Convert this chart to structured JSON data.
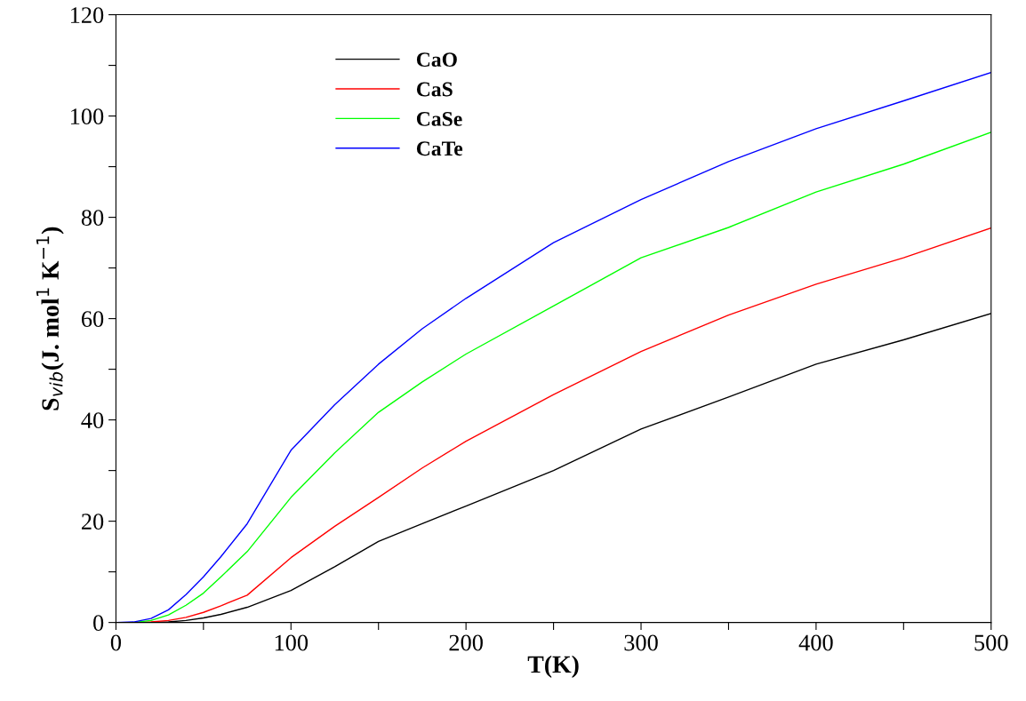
{
  "chart_data": {
    "type": "line",
    "xlabel": "T(K)",
    "ylabel": "S$_{vib}$(J. mol$^{1}$ K$^{−1}$)",
    "x": [
      0,
      10,
      20,
      30,
      40,
      50,
      60,
      75,
      100,
      125,
      150,
      175,
      200,
      250,
      300,
      350,
      400,
      450,
      500
    ],
    "series": [
      {
        "name": "CaO",
        "color": "#000000",
        "values": [
          0,
          0,
          0,
          0.1,
          0.4,
          0.9,
          1.6,
          3,
          6.3,
          11,
          16,
          19.5,
          23,
          30,
          38.2,
          44.5,
          51,
          55.8,
          61
        ]
      },
      {
        "name": "CaS",
        "color": "#ff0000",
        "values": [
          0,
          0,
          0.1,
          0.4,
          1,
          2,
          3.3,
          5.4,
          12.8,
          19,
          24.7,
          30.5,
          35.8,
          45,
          53.5,
          60.7,
          66.8,
          72,
          77.9
        ]
      },
      {
        "name": "CaSe",
        "color": "#00ff00",
        "values": [
          0,
          0,
          0.4,
          1.5,
          3.4,
          5.8,
          9,
          14,
          24.7,
          33.5,
          41.5,
          47.5,
          53,
          62.5,
          72,
          78,
          85,
          90.5,
          96.8
        ]
      },
      {
        "name": "CaTe",
        "color": "#0000ff",
        "values": [
          0,
          0.1,
          0.8,
          2.5,
          5.5,
          9,
          13,
          19.5,
          34,
          43,
          51,
          58,
          64,
          75,
          83.5,
          91,
          97.5,
          103,
          108.6
        ]
      }
    ],
    "xlim": [
      0,
      500
    ],
    "ylim": [
      0,
      120
    ],
    "xticks": [
      0,
      {
        "value": 50,
        "label": null
      },
      100,
      {
        "value": 150,
        "label": null
      },
      200,
      {
        "value": 250,
        "label": null
      },
      300,
      {
        "value": 350,
        "label": null
      },
      400,
      {
        "value": 450,
        "label": null
      },
      500
    ],
    "yticks": [
      0,
      {
        "value": 10,
        "label": null
      },
      20,
      {
        "value": 30,
        "label": null
      },
      40,
      {
        "value": 50,
        "label": null
      },
      60,
      {
        "value": 70,
        "label": null
      },
      80,
      {
        "value": 90,
        "label": null
      },
      100,
      {
        "value": 110,
        "label": null
      },
      120
    ],
    "legend": "top left",
    "grid": false,
    "marker": "none",
    "line_style": "solid"
  }
}
